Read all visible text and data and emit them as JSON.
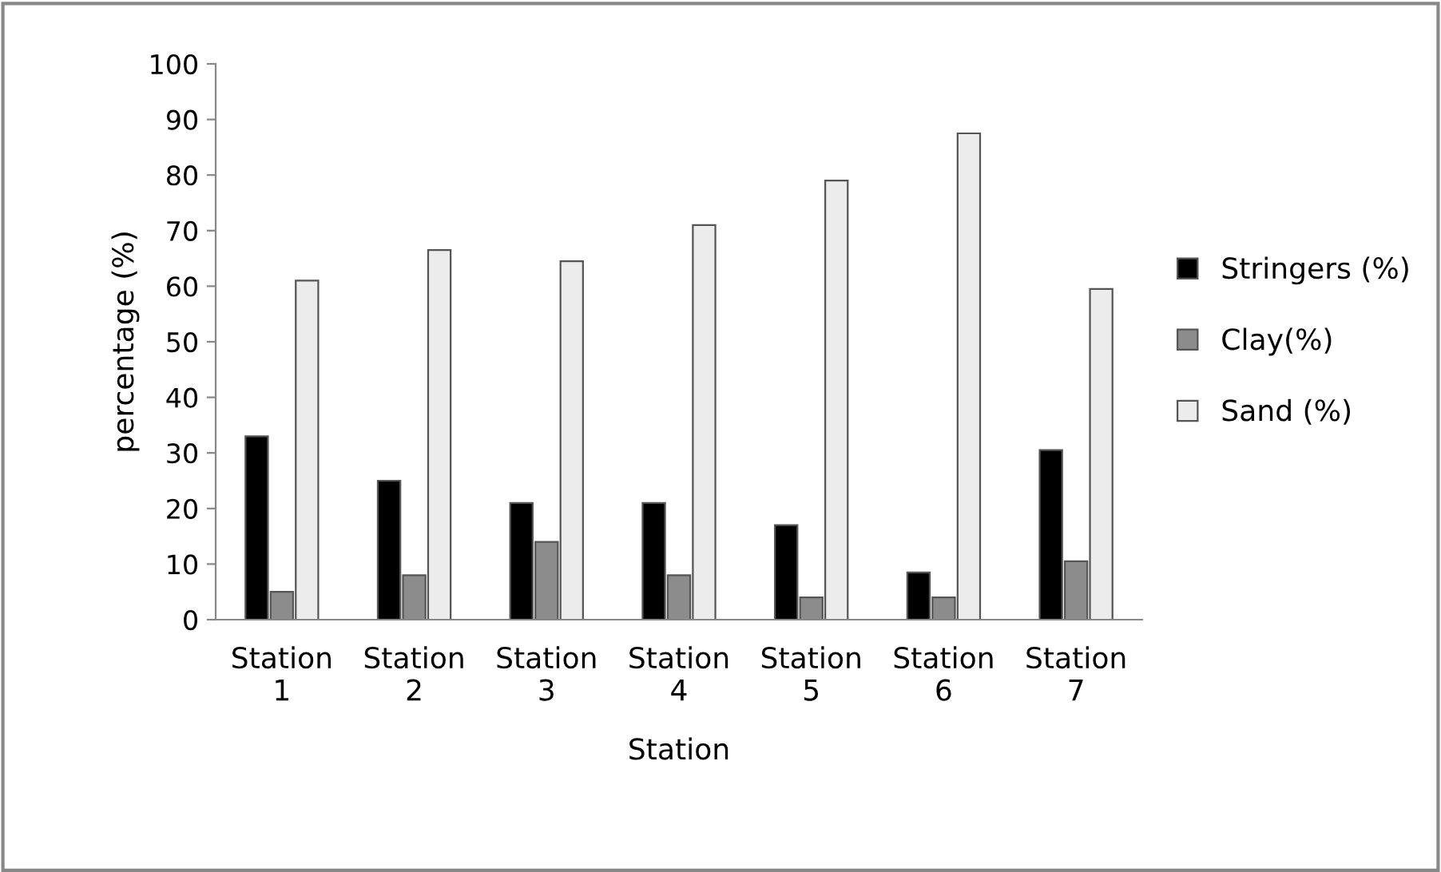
{
  "chart_data": {
    "type": "bar",
    "xlabel": "Station",
    "ylabel": "percentage (%)",
    "categories": [
      "Station 1",
      "Station 2",
      "Station 3",
      "Station 4",
      "Station 5",
      "Station 6",
      "Station 7"
    ],
    "series": [
      {
        "name": "Stringers (%)",
        "color": "#000000",
        "values": [
          33,
          25,
          21,
          21,
          17,
          8.5,
          30.5
        ]
      },
      {
        "name": "Clay(%)",
        "color": "#8c8c8c",
        "values": [
          5,
          8,
          14,
          8,
          4,
          4,
          10.5
        ]
      },
      {
        "name": "Sand (%)",
        "color": "#ececec",
        "values": [
          61,
          66.5,
          64.5,
          71,
          79,
          87.5,
          59.5
        ]
      }
    ],
    "ylim": [
      0,
      100
    ],
    "yticks": [
      0,
      10,
      20,
      30,
      40,
      50,
      60,
      70,
      80,
      90,
      100
    ],
    "grid": false,
    "legend": "right"
  }
}
